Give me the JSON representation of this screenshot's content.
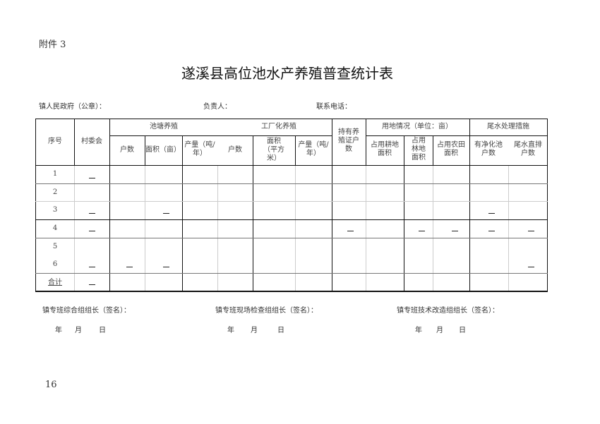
{
  "attachment": "附件 3",
  "title": "遂溪县高位池水产养殖普查统计表",
  "info": {
    "gov": "镇人民政府（公章）：",
    "leader": "负责人：",
    "phone": "联系电话："
  },
  "headers": {
    "seq": "序号",
    "village": "村委会",
    "pond": "池塘养殖",
    "pond_households": "户数",
    "pond_area": "面积（亩）",
    "pond_output": "产量（吨/年）",
    "factory": "工厂化养殖",
    "factory_households": "户数",
    "factory_area": "面积（平方米）",
    "factory_output": "产量（吨/年）",
    "licensed": "持有养殖证户数",
    "land": "用地情况（单位：亩）",
    "land_farm": "占用耕地面积",
    "land_forest": "占用林地面积",
    "land_field": "占用农田面积",
    "tail": "尾水处理措施",
    "tail_pool": "有净化池户数",
    "tail_direct": "尾水直排户数"
  },
  "rows": [
    "1",
    "2",
    "3",
    "4",
    "5",
    "6",
    "合计"
  ],
  "dash": "—",
  "signatures": [
    {
      "label": "镇专班综合组组长（签名）：",
      "year": "年",
      "month": "月",
      "day": "日"
    },
    {
      "label": "镇专班现场检查组组长（签名）：",
      "year": "年",
      "month": "月",
      "day": "日"
    },
    {
      "label": "镇专班技术改造组组长（签名）：",
      "year": "年",
      "month": "月",
      "day": "日"
    }
  ],
  "page_number": "16"
}
